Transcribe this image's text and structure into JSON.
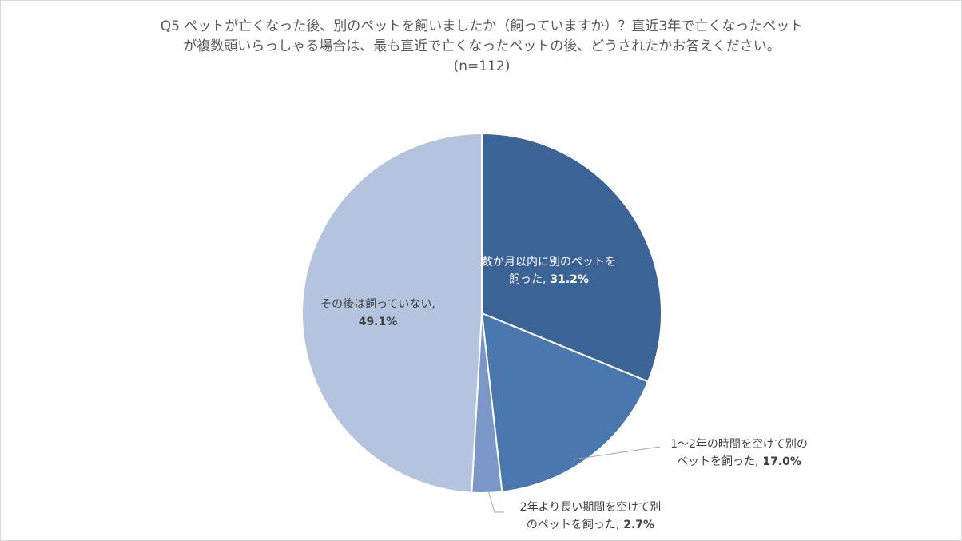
{
  "chart_data": {
    "type": "pie",
    "title_lines": [
      "Q5 ペットが亡くなった後、別のペットを飼いましたか（飼っていますか）？直近3年で亡くなったペット",
      "が複数頭いらっしゃる場合は、最も直近で亡くなったペットの後、どうされたかお答えください。",
      "(n=112)"
    ],
    "slices": [
      {
        "label_lines": [
          "数か月以内に別のペットを",
          "飼った,"
        ],
        "value": 31.2,
        "value_text": "31.2%",
        "color": "#3b6396"
      },
      {
        "label_lines": [
          "1～2年の時間を空けて別の",
          "ペットを飼った,"
        ],
        "value": 17.0,
        "value_text": "17.0%",
        "color": "#4a77ad"
      },
      {
        "label_lines": [
          "2年より長い期間を空けて別",
          "のペットを飼った,"
        ],
        "value": 2.7,
        "value_text": "2.7%",
        "color": "#7b97c7"
      },
      {
        "label_lines": [
          "その後は飼っていない,"
        ],
        "value": 49.1,
        "value_text": "49.1%",
        "color": "#b4c3de"
      }
    ]
  }
}
